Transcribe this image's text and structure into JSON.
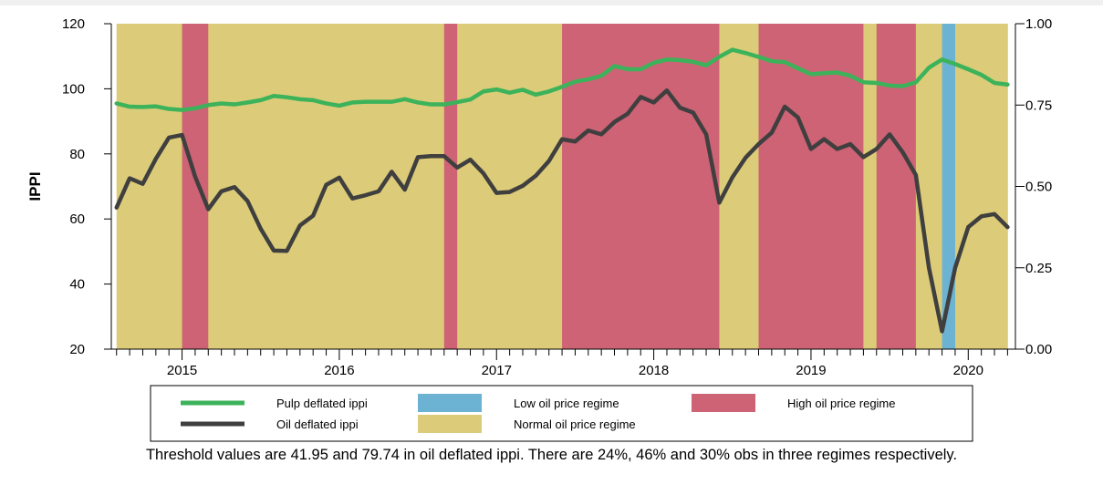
{
  "caption": "Threshold values are 41.95 and 79.74 in oil deflated ippi. There are 24%, 46% and 30% obs in three regimes respectively.",
  "chart_data": {
    "type": "line",
    "ylabel": "IPPI",
    "ylim": [
      20,
      120
    ],
    "yticks": [
      20,
      40,
      60,
      80,
      100,
      120
    ],
    "y2lim": [
      0,
      1
    ],
    "y2ticks": [
      "0.00",
      "0.25",
      "0.50",
      "0.75",
      "1.00"
    ],
    "xlim": [
      2014.55,
      2020.3
    ],
    "xticks": [
      2015,
      2016,
      2017,
      2018,
      2019,
      2020
    ],
    "legend": [
      {
        "label": "Pulp deflated ippi",
        "kind": "line",
        "color": "#3cb35a"
      },
      {
        "label": "Oil deflated ippi",
        "kind": "line",
        "color": "#3f3f3f"
      },
      {
        "label": "Low oil price regime",
        "kind": "patch",
        "color": "#6cb2d3"
      },
      {
        "label": "Normal oil price regime",
        "kind": "patch",
        "color": "#dccb78"
      },
      {
        "label": "High oil price regime",
        "kind": "patch",
        "color": "#cd6374"
      }
    ],
    "regimes": [
      {
        "regime": "Normal oil price regime",
        "start": 2014.5833,
        "end": 2015.0
      },
      {
        "regime": "High oil price regime",
        "start": 2015.0,
        "end": 2015.1667
      },
      {
        "regime": "Normal oil price regime",
        "start": 2015.1667,
        "end": 2016.6667
      },
      {
        "regime": "High oil price regime",
        "start": 2016.6667,
        "end": 2016.75
      },
      {
        "regime": "Normal oil price regime",
        "start": 2016.75,
        "end": 2017.4167
      },
      {
        "regime": "High oil price regime",
        "start": 2017.4167,
        "end": 2018.4167
      },
      {
        "regime": "Normal oil price regime",
        "start": 2018.4167,
        "end": 2018.6667
      },
      {
        "regime": "High oil price regime",
        "start": 2018.6667,
        "end": 2019.3333
      },
      {
        "regime": "Normal oil price regime",
        "start": 2019.3333,
        "end": 2019.4167
      },
      {
        "regime": "High oil price regime",
        "start": 2019.4167,
        "end": 2019.6667
      },
      {
        "regime": "Normal oil price regime",
        "start": 2019.6667,
        "end": 2019.8333
      },
      {
        "regime": "Low oil price regime",
        "start": 2019.8333,
        "end": 2019.9167
      },
      {
        "regime": "Normal oil price regime",
        "start": 2019.9167,
        "end": 2020.25
      }
    ],
    "series": [
      {
        "name": "Pulp deflated ippi",
        "color": "#3cb35a",
        "x": [
          2014.5833,
          2014.6667,
          2014.75,
          2014.8333,
          2014.9167,
          2015.0,
          2015.0833,
          2015.1667,
          2015.25,
          2015.3333,
          2015.4167,
          2015.5,
          2015.5833,
          2015.6667,
          2015.75,
          2015.8333,
          2015.9167,
          2016.0,
          2016.0833,
          2016.1667,
          2016.25,
          2016.3333,
          2016.4167,
          2016.5,
          2016.5833,
          2016.6667,
          2016.75,
          2016.8333,
          2016.9167,
          2017.0,
          2017.0833,
          2017.1667,
          2017.25,
          2017.3333,
          2017.4167,
          2017.5,
          2017.5833,
          2017.6667,
          2017.75,
          2017.8333,
          2017.9167,
          2018.0,
          2018.0833,
          2018.1667,
          2018.25,
          2018.3333,
          2018.4167,
          2018.5,
          2018.5833,
          2018.6667,
          2018.75,
          2018.8333,
          2018.9167,
          2019.0,
          2019.0833,
          2019.1667,
          2019.25,
          2019.3333,
          2019.4167,
          2019.5,
          2019.5833,
          2019.6667,
          2019.75,
          2019.8333,
          2019.9167,
          2020.0,
          2020.0833,
          2020.1667,
          2020.25
        ],
        "values": [
          95.5,
          94.5,
          94.4,
          94.6,
          93.8,
          93.5,
          94.0,
          95.0,
          95.5,
          95.2,
          95.8,
          96.5,
          97.8,
          97.4,
          96.8,
          96.5,
          95.5,
          94.8,
          95.8,
          96.0,
          96.0,
          96.0,
          96.8,
          95.8,
          95.2,
          95.2,
          95.9,
          96.7,
          99.2,
          99.8,
          98.8,
          99.7,
          98.2,
          99.2,
          100.6,
          102.2,
          102.9,
          104.0,
          107.0,
          106.0,
          106.0,
          108.0,
          109.0,
          108.8,
          108.3,
          107.2,
          109.8,
          112.0,
          111.0,
          109.8,
          108.5,
          108.2,
          106.3,
          104.5,
          104.8,
          105.0,
          104.0,
          102.0,
          101.8,
          101.0,
          100.8,
          102.0,
          106.5,
          109.0,
          107.6,
          106.0,
          104.3,
          101.8,
          101.3
        ]
      },
      {
        "name": "Oil deflated ippi",
        "color": "#3f3f3f",
        "x": [
          2014.5833,
          2014.6667,
          2014.75,
          2014.8333,
          2014.9167,
          2015.0,
          2015.0833,
          2015.1667,
          2015.25,
          2015.3333,
          2015.4167,
          2015.5,
          2015.5833,
          2015.6667,
          2015.75,
          2015.8333,
          2015.9167,
          2016.0,
          2016.0833,
          2016.1667,
          2016.25,
          2016.3333,
          2016.4167,
          2016.5,
          2016.5833,
          2016.6667,
          2016.75,
          2016.8333,
          2016.9167,
          2017.0,
          2017.0833,
          2017.1667,
          2017.25,
          2017.3333,
          2017.4167,
          2017.5,
          2017.5833,
          2017.6667,
          2017.75,
          2017.8333,
          2017.9167,
          2018.0,
          2018.0833,
          2018.1667,
          2018.25,
          2018.3333,
          2018.4167,
          2018.5,
          2018.5833,
          2018.6667,
          2018.75,
          2018.8333,
          2018.9167,
          2019.0,
          2019.0833,
          2019.1667,
          2019.25,
          2019.3333,
          2019.4167,
          2019.5,
          2019.5833,
          2019.6667,
          2019.75,
          2019.8333,
          2019.9167,
          2020.0,
          2020.0833,
          2020.1667,
          2020.25
        ],
        "values": [
          63.5,
          72.5,
          70.8,
          78.5,
          85.0,
          85.8,
          73.0,
          63.0,
          68.5,
          69.8,
          65.5,
          57.0,
          50.3,
          50.2,
          58.0,
          61.0,
          70.5,
          72.7,
          66.3,
          67.3,
          68.5,
          74.5,
          69.0,
          79.0,
          79.3,
          79.3,
          75.8,
          78.2,
          74.0,
          68.0,
          68.3,
          70.2,
          73.3,
          77.8,
          84.5,
          83.8,
          87.2,
          86.0,
          89.8,
          92.3,
          97.5,
          95.8,
          99.5,
          94.2,
          92.7,
          86.0,
          65.0,
          72.8,
          78.8,
          83.0,
          86.5,
          94.5,
          91.2,
          81.5,
          84.5,
          81.5,
          83.0,
          79.0,
          81.5,
          86.0,
          80.5,
          73.5,
          45.0,
          25.5,
          45.0,
          57.5,
          60.8,
          61.5,
          57.5
        ]
      }
    ]
  }
}
